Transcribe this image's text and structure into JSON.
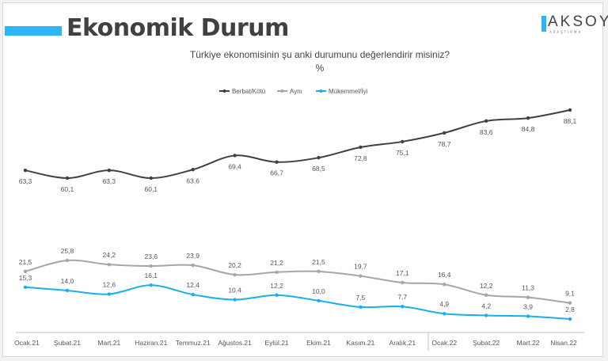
{
  "header": {
    "title": "Ekonomik Durum",
    "logo_name": "AKSOY",
    "logo_sub": "ARAŞTIRMA"
  },
  "chart_data": {
    "type": "line",
    "title": "Türkiye ekonomisinin şu anki durumunu değerlendirir misiniz?",
    "subtitle": "%",
    "legend_position": "top-center",
    "grid": false,
    "categories": [
      "Ocak.21",
      "Şubat.21",
      "Mart.21",
      "Haziran.21",
      "Temmuz.21",
      "Ağustos.21",
      "Eylül.21",
      "Ekim.21",
      "Kasım.21",
      "Aralık.21",
      "Ocak.22",
      "Şubat.22",
      "Mart.22",
      "Nisan.22"
    ],
    "series": [
      {
        "name": "Berbat/Kötü",
        "color": "#404040",
        "values": [
          63.3,
          60.1,
          63.3,
          60.1,
          63.6,
          69.4,
          66.7,
          68.5,
          72.8,
          75.1,
          78.7,
          83.6,
          84.8,
          88.1
        ],
        "labels": [
          "63,3",
          "60,1",
          "63,3",
          "60,1",
          "63,6",
          "69,4",
          "66,7",
          "68,5",
          "72,8",
          "75,1",
          "78,7",
          "83,6",
          "84,8",
          "88,1"
        ]
      },
      {
        "name": "Aynı",
        "color": "#a6a6a6",
        "values": [
          21.5,
          25.8,
          24.2,
          23.6,
          23.9,
          20.2,
          21.2,
          21.5,
          19.7,
          17.1,
          16.4,
          12.2,
          11.3,
          9.1
        ],
        "labels": [
          "21,5",
          "25,8",
          "24,2",
          "23,6",
          "23,9",
          "20,2",
          "21,2",
          "21,5",
          "19,7",
          "17,1",
          "16,4",
          "12,2",
          "11,3",
          "9,1"
        ]
      },
      {
        "name": "Mükemmel/İyi",
        "color": "#1aaef0",
        "values": [
          15.3,
          14.0,
          12.6,
          16.1,
          12.4,
          10.4,
          12.2,
          10.0,
          7.5,
          7.7,
          4.9,
          4.2,
          3.9,
          2.8
        ],
        "labels": [
          "15,3",
          "14,0",
          "12,6",
          "16,1",
          "12,4",
          "10,4",
          "12,2",
          "10,0",
          "7,5",
          "7,7",
          "4,9",
          "4,2",
          "3,9",
          "2,8"
        ]
      }
    ]
  }
}
